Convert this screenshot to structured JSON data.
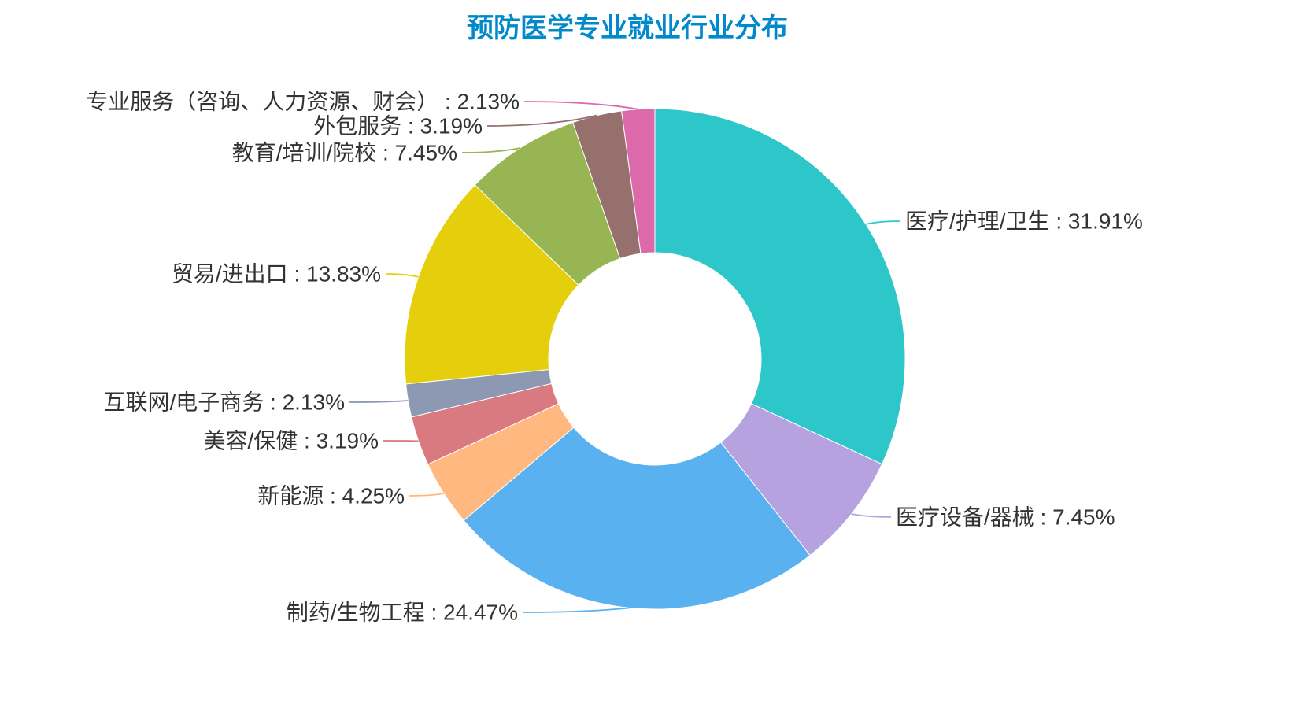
{
  "page": {
    "background": "#ffffff"
  },
  "chart_data": {
    "type": "pie",
    "subtype": "donut",
    "title": "预防医学专业就业行业分布",
    "title_color": "#008acd",
    "label_color": "#333333",
    "label_format": "{name} : {value}%",
    "legend_position": "none",
    "unit": "%",
    "total": 100,
    "series": [
      {
        "name": "医疗/护理/卫生",
        "value": 31.91,
        "color": "#2ec7c9"
      },
      {
        "name": "医疗设备/器械",
        "value": 7.45,
        "color": "#b6a2de"
      },
      {
        "name": "制药/生物工程",
        "value": 24.47,
        "color": "#5ab1ef"
      },
      {
        "name": "新能源",
        "value": 4.25,
        "color": "#ffb980"
      },
      {
        "name": "美容/保健",
        "value": 3.19,
        "color": "#d87a80"
      },
      {
        "name": "互联网/电子商务",
        "value": 2.13,
        "color": "#8d98b3"
      },
      {
        "name": "贸易/进出口",
        "value": 13.83,
        "color": "#e5cf0d"
      },
      {
        "name": "教育/培训/院校",
        "value": 7.45,
        "color": "#97b552"
      },
      {
        "name": "外包服务",
        "value": 3.19,
        "color": "#95706d"
      },
      {
        "name": "专业服务（咨询、人力资源、财会）",
        "value": 2.13,
        "color": "#dc69aa"
      }
    ]
  }
}
